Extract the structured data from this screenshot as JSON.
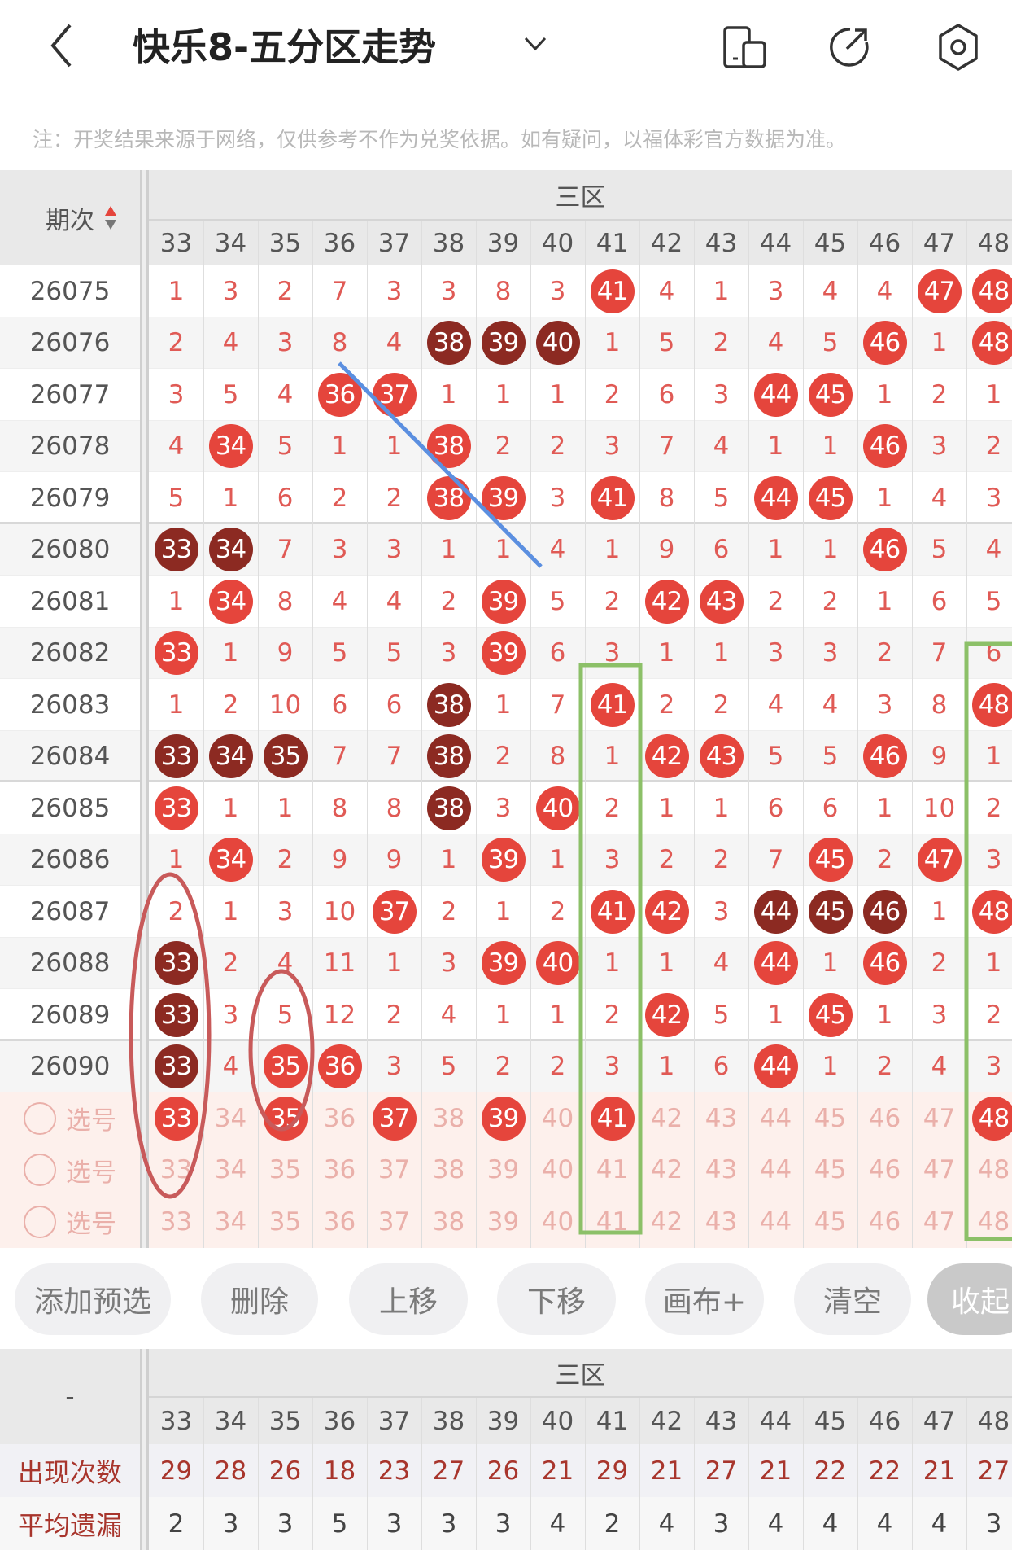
{
  "header": {
    "title": "快乐8-五分区走势",
    "back_icon": "chevron-left-icon",
    "dropdown_icon": "chevron-down-icon",
    "icons": [
      "phone-layout-icon",
      "share-icon",
      "settings-icon"
    ]
  },
  "note": "注：开奖结果来源于网络，仅供参考不作为兑奖依据。如有疑问，以福体彩官方数据为准。",
  "table": {
    "period_header": "期次",
    "zone_label": "三区",
    "columns": [
      "33",
      "34",
      "35",
      "36",
      "37",
      "38",
      "39",
      "40",
      "41",
      "42",
      "43",
      "44",
      "45",
      "46",
      "47",
      "48"
    ],
    "rows": [
      {
        "period": "26075",
        "values": [
          "1",
          "3",
          "2",
          "7",
          "3",
          "3",
          "8",
          "3",
          "41",
          "4",
          "1",
          "3",
          "4",
          "4",
          "47",
          "48"
        ],
        "hits": [
          "41",
          "47",
          "48"
        ],
        "dark": []
      },
      {
        "period": "26076",
        "values": [
          "2",
          "4",
          "3",
          "8",
          "4",
          "38",
          "39",
          "40",
          "1",
          "5",
          "2",
          "4",
          "5",
          "46",
          "1",
          "48"
        ],
        "hits": [
          "38",
          "39",
          "40",
          "46",
          "48"
        ],
        "dark": [
          "38",
          "39",
          "40"
        ]
      },
      {
        "period": "26077",
        "values": [
          "3",
          "5",
          "4",
          "36",
          "37",
          "1",
          "1",
          "1",
          "2",
          "6",
          "3",
          "44",
          "45",
          "1",
          "2",
          "1"
        ],
        "hits": [
          "36",
          "37",
          "44",
          "45"
        ],
        "dark": []
      },
      {
        "period": "26078",
        "values": [
          "4",
          "34",
          "5",
          "1",
          "1",
          "38",
          "2",
          "2",
          "3",
          "7",
          "4",
          "1",
          "1",
          "46",
          "3",
          "2"
        ],
        "hits": [
          "34",
          "38",
          "46"
        ],
        "dark": []
      },
      {
        "period": "26079",
        "values": [
          "5",
          "1",
          "6",
          "2",
          "2",
          "38",
          "39",
          "3",
          "41",
          "8",
          "5",
          "44",
          "45",
          "1",
          "4",
          "3"
        ],
        "hits": [
          "38",
          "39",
          "41",
          "44",
          "45"
        ],
        "dark": []
      },
      {
        "period": "26080",
        "values": [
          "33",
          "34",
          "7",
          "3",
          "3",
          "1",
          "1",
          "4",
          "1",
          "9",
          "6",
          "1",
          "1",
          "46",
          "5",
          "4"
        ],
        "hits": [
          "33",
          "34",
          "46"
        ],
        "dark": [
          "33",
          "34"
        ]
      },
      {
        "period": "26081",
        "values": [
          "1",
          "34",
          "8",
          "4",
          "4",
          "2",
          "39",
          "5",
          "2",
          "42",
          "43",
          "2",
          "2",
          "1",
          "6",
          "5"
        ],
        "hits": [
          "34",
          "39",
          "42",
          "43"
        ],
        "dark": []
      },
      {
        "period": "26082",
        "values": [
          "33",
          "1",
          "9",
          "5",
          "5",
          "3",
          "39",
          "6",
          "3",
          "1",
          "1",
          "3",
          "3",
          "2",
          "7",
          "6"
        ],
        "hits": [
          "33",
          "39"
        ],
        "dark": []
      },
      {
        "period": "26083",
        "values": [
          "1",
          "2",
          "10",
          "6",
          "6",
          "38",
          "1",
          "7",
          "41",
          "2",
          "2",
          "4",
          "4",
          "3",
          "8",
          "48"
        ],
        "hits": [
          "38",
          "41",
          "48"
        ],
        "dark": [
          "38"
        ]
      },
      {
        "period": "26084",
        "values": [
          "33",
          "34",
          "35",
          "7",
          "7",
          "38",
          "2",
          "8",
          "1",
          "42",
          "43",
          "5",
          "5",
          "46",
          "9",
          "1"
        ],
        "hits": [
          "33",
          "34",
          "35",
          "38",
          "42",
          "43",
          "46"
        ],
        "dark": [
          "33",
          "34",
          "35",
          "38"
        ]
      },
      {
        "period": "26085",
        "values": [
          "33",
          "1",
          "1",
          "8",
          "8",
          "38",
          "3",
          "40",
          "2",
          "1",
          "1",
          "6",
          "6",
          "1",
          "10",
          "2"
        ],
        "hits": [
          "33",
          "38",
          "40"
        ],
        "dark": [
          "38"
        ]
      },
      {
        "period": "26086",
        "values": [
          "1",
          "34",
          "2",
          "9",
          "9",
          "1",
          "39",
          "1",
          "3",
          "2",
          "2",
          "7",
          "45",
          "2",
          "47",
          "3"
        ],
        "hits": [
          "34",
          "39",
          "45",
          "47"
        ],
        "dark": []
      },
      {
        "period": "26087",
        "values": [
          "2",
          "1",
          "3",
          "10",
          "37",
          "2",
          "1",
          "2",
          "41",
          "42",
          "3",
          "44",
          "45",
          "46",
          "1",
          "48"
        ],
        "hits": [
          "37",
          "41",
          "42",
          "44",
          "45",
          "46",
          "48"
        ],
        "dark": [
          "44",
          "45",
          "46"
        ]
      },
      {
        "period": "26088",
        "values": [
          "33",
          "2",
          "4",
          "11",
          "1",
          "3",
          "39",
          "40",
          "1",
          "1",
          "4",
          "44",
          "1",
          "46",
          "2",
          "1"
        ],
        "hits": [
          "33",
          "39",
          "40",
          "44",
          "46"
        ],
        "dark": [
          "33"
        ]
      },
      {
        "period": "26089",
        "values": [
          "33",
          "3",
          "5",
          "12",
          "2",
          "4",
          "1",
          "1",
          "2",
          "42",
          "5",
          "1",
          "45",
          "1",
          "3",
          "2"
        ],
        "hits": [
          "33",
          "42",
          "45"
        ],
        "dark": [
          "33"
        ]
      },
      {
        "period": "26090",
        "values": [
          "33",
          "4",
          "35",
          "36",
          "3",
          "5",
          "2",
          "2",
          "3",
          "1",
          "6",
          "44",
          "1",
          "2",
          "4",
          "3"
        ],
        "hits": [
          "33",
          "35",
          "36",
          "44"
        ],
        "dark": [
          "33"
        ]
      }
    ],
    "select_rows": [
      {
        "label": "选号",
        "selected": [
          "33",
          "35",
          "37",
          "39",
          "41",
          "48"
        ]
      },
      {
        "label": "选号",
        "selected": []
      },
      {
        "label": "选号",
        "selected": []
      }
    ]
  },
  "buttons": [
    "添加预选",
    "删除",
    "上移",
    "下移",
    "画布+",
    "清空",
    "收起"
  ],
  "stats": {
    "corner": "-",
    "zone_label": "三区",
    "columns": [
      "33",
      "34",
      "35",
      "36",
      "37",
      "38",
      "39",
      "40",
      "41",
      "42",
      "43",
      "44",
      "45",
      "46",
      "47",
      "48"
    ],
    "rows": [
      {
        "label": "出现次数",
        "values": [
          "29",
          "28",
          "26",
          "18",
          "23",
          "27",
          "26",
          "21",
          "29",
          "21",
          "27",
          "21",
          "22",
          "22",
          "21",
          "27"
        ]
      },
      {
        "label": "平均遗漏",
        "values": [
          "2",
          "3",
          "3",
          "5",
          "3",
          "3",
          "3",
          "4",
          "2",
          "4",
          "3",
          "4",
          "4",
          "4",
          "4",
          "3"
        ]
      }
    ]
  },
  "colors": {
    "ball": "#e5453c",
    "ball_dark": "#8c2a22",
    "annotation_blue": "#5b8fe0",
    "annotation_red": "#c85a5a",
    "annotation_green": "#8cc068"
  }
}
